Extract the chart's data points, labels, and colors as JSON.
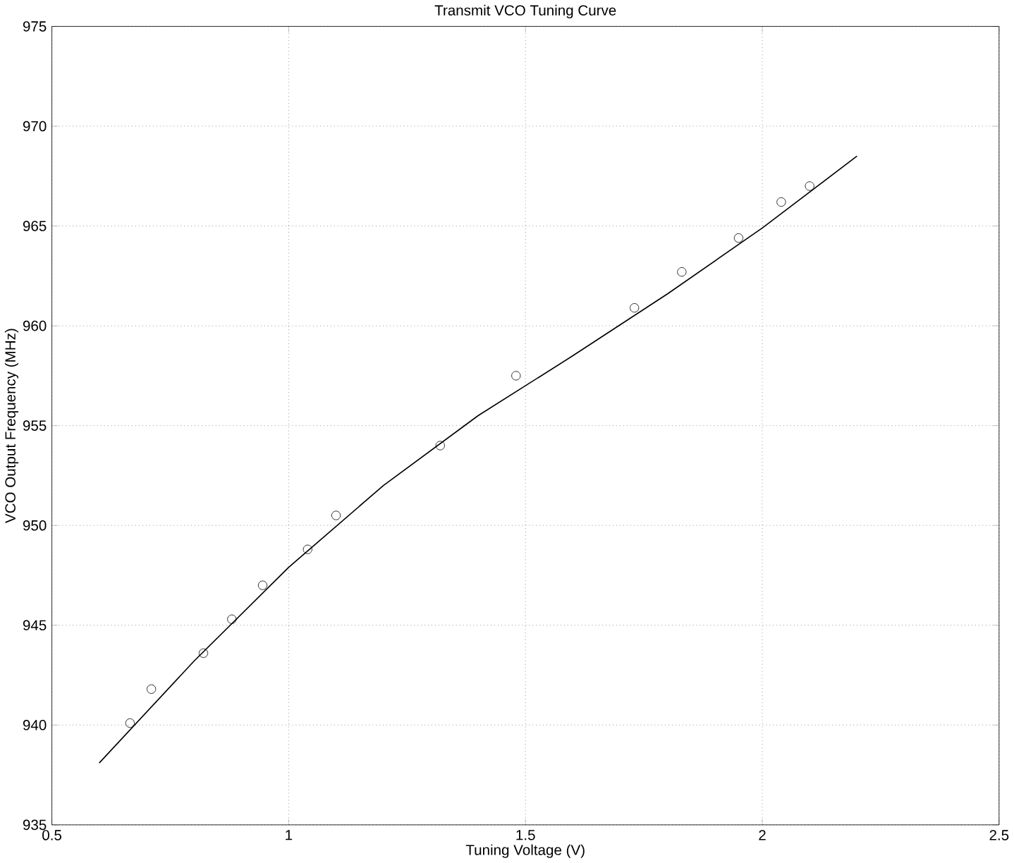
{
  "chart_data": {
    "type": "scatter",
    "title": "Transmit VCO Tuning Curve",
    "xlabel": "Tuning Voltage (V)",
    "ylabel": "VCO Output Frequency (MHz)",
    "series": [
      {
        "color": "#000000",
        "marker": "circle",
        "x": [
          0.665,
          0.71,
          0.82,
          0.88,
          0.945,
          1.04,
          1.1,
          1.32,
          1.48,
          1.73,
          1.83,
          1.95,
          2.04,
          2.1
        ],
        "values": [
          940.1,
          941.8,
          943.6,
          945.3,
          947.0,
          948.8,
          950.5,
          954.0,
          957.5,
          960.9,
          962.7,
          964.4,
          966.2,
          967.0
        ]
      },
      {
        "type": "line",
        "color": "#000000",
        "marker": "none",
        "line_style": "solid",
        "x": [
          0.6,
          0.8,
          1.0,
          1.2,
          1.4,
          1.6,
          1.8,
          2.0,
          2.2
        ],
        "values": [
          938.1,
          943.2,
          947.9,
          952.0,
          955.5,
          958.5,
          961.6,
          964.9,
          968.5
        ]
      }
    ],
    "xlim": [
      0.5,
      2.5
    ],
    "ylim": [
      935,
      975
    ],
    "xticks": [
      0.5,
      1,
      1.5,
      2,
      2.5
    ],
    "yticks": [
      935,
      940,
      945,
      950,
      955,
      960,
      965,
      970,
      975
    ],
    "grid": true
  }
}
